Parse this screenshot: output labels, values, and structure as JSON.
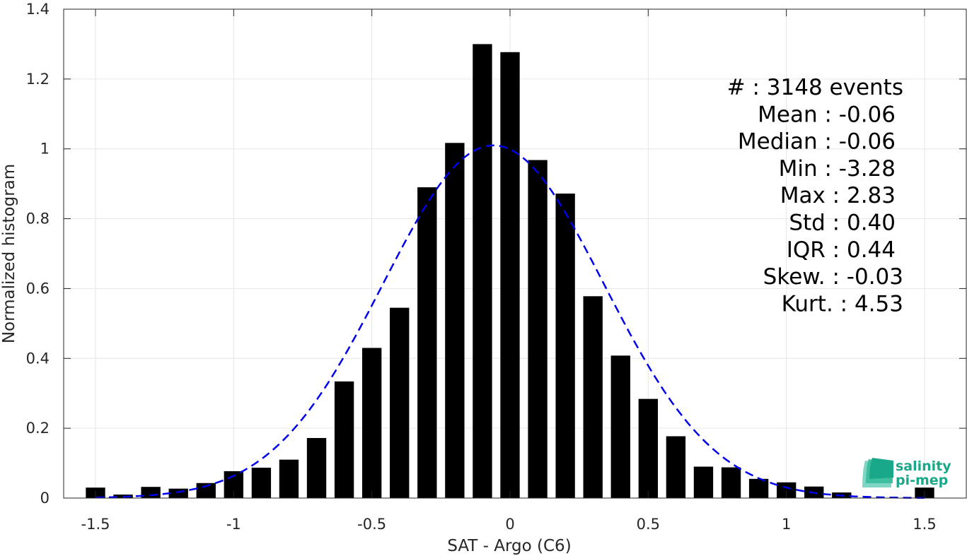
{
  "chart_data": {
    "type": "bar",
    "title": "",
    "xlabel": "SAT - Argo (C6)",
    "ylabel": "Normalized histogram",
    "xlim": [
      -1.6,
      1.6
    ],
    "ylim": [
      0,
      1.4
    ],
    "x_ticks": [
      -1.5,
      -1,
      -0.5,
      0,
      0.5,
      1,
      1.5
    ],
    "x_tick_labels": [
      "-1.5",
      "-1",
      "-0.5",
      "0",
      "0.5",
      "1",
      "1.5"
    ],
    "y_ticks": [
      0,
      0.2,
      0.4,
      0.6,
      0.8,
      1,
      1.2,
      1.4
    ],
    "y_tick_labels": [
      "0",
      "0.2",
      "0.4",
      "0.6",
      "0.8",
      "1",
      "1.2",
      "1.4"
    ],
    "grid": true,
    "bar_color": "#000000",
    "bar_width": 0.07,
    "bins": [
      -1.5,
      -1.4,
      -1.3,
      -1.2,
      -1.1,
      -1.0,
      -0.9,
      -0.8,
      -0.7,
      -0.6,
      -0.5,
      -0.4,
      -0.3,
      -0.2,
      -0.1,
      0.0,
      0.1,
      0.2,
      0.3,
      0.4,
      0.5,
      0.6,
      0.7,
      0.8,
      0.9,
      1.0,
      1.1,
      1.2,
      1.5
    ],
    "values": [
      0.03,
      0.01,
      0.032,
      0.027,
      0.043,
      0.077,
      0.087,
      0.11,
      0.172,
      0.334,
      0.43,
      0.545,
      0.89,
      1.017,
      1.3,
      1.277,
      0.968,
      0.872,
      0.578,
      0.408,
      0.284,
      0.177,
      0.09,
      0.088,
      0.055,
      0.045,
      0.033,
      0.016,
      0.03
    ],
    "fit": {
      "type": "gaussian-fit",
      "style": "dashed",
      "color": "#0000ee",
      "mean": -0.06,
      "std": 0.4,
      "peak": 1.01,
      "x_range": [
        -1.5,
        1.5
      ]
    }
  },
  "stats": [
    {
      "label": "#  ",
      "value": ": 3148 events"
    },
    {
      "label": "Mean",
      "value": " : -0.06"
    },
    {
      "label": "Median",
      "value": " : -0.06"
    },
    {
      "label": "Min",
      "value": " : -3.28"
    },
    {
      "label": "Max",
      "value": " : 2.83"
    },
    {
      "label": "Std",
      "value": " : 0.40"
    },
    {
      "label": "IQR",
      "value": " : 0.44"
    },
    {
      "label": "Skew.",
      "value": " : -0.03"
    },
    {
      "label": "Kurt.",
      "value": " : 4.53"
    }
  ],
  "logo": {
    "line1": "salinity",
    "line2": "pi-mep",
    "color": "#1aa88a"
  }
}
